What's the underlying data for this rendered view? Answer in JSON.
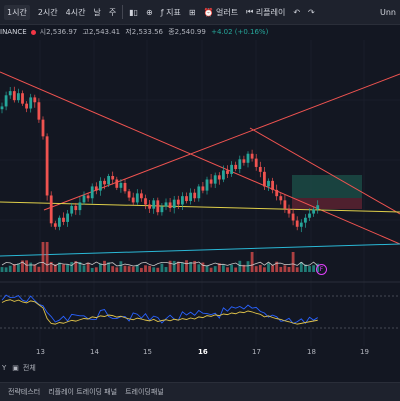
{
  "toolbar": {
    "intervals": [
      "1시간",
      "2시간",
      "4시간",
      "날",
      "주"
    ],
    "active_interval_index": 0,
    "indicators_label": "지표",
    "alert_label": "얼러트",
    "replay_label": "리플레이",
    "symbol_tab": "Unn"
  },
  "symbol": {
    "name": "INANCE",
    "open": "시2,536.97",
    "high": "고2,543.41",
    "low": "저2,533.56",
    "close": "종2,540.99",
    "change": "+4.02 (+0.16%)"
  },
  "time_axis": [
    "13",
    "14",
    "15",
    "16",
    "17",
    "18",
    "19"
  ],
  "range_bar": {
    "text": "Y",
    "all_label": "전체"
  },
  "bottom_bar": [
    "전략테스터",
    "리플레이 트레이딩 패널",
    "트레이딩패널"
  ],
  "volume_badge": "F",
  "colors": {
    "up": "#26a69a",
    "down": "#ef5350",
    "trend_red": "#ef5350",
    "trend_yellow": "#e0d04a",
    "trend_cyan": "#2ab8d6",
    "background": "#131722"
  },
  "chart_data": {
    "type": "candlestick",
    "candles_close": [
      2562,
      2578,
      2584,
      2571,
      2581,
      2566,
      2559,
      2575,
      2568,
      2543,
      2519,
      2434,
      2394,
      2389,
      2402,
      2396,
      2408,
      2419,
      2413,
      2424,
      2434,
      2430,
      2447,
      2441,
      2455,
      2450,
      2462,
      2457,
      2445,
      2452,
      2440,
      2431,
      2424,
      2437,
      2430,
      2421,
      2415,
      2427,
      2410,
      2418,
      2424,
      2416,
      2428,
      2421,
      2433,
      2426,
      2438,
      2430,
      2447,
      2441,
      2457,
      2451,
      2463,
      2457,
      2470,
      2465,
      2478,
      2472,
      2486,
      2481,
      2494,
      2487,
      2475,
      2468,
      2447,
      2455,
      2442,
      2433,
      2427,
      2415,
      2408,
      2398,
      2389,
      2395,
      2402,
      2408,
      2414,
      2420
    ],
    "trendlines": [
      "red-descending-upper",
      "red-ascending",
      "red-descending-lower",
      "yellow-support",
      "cyan-support"
    ]
  }
}
